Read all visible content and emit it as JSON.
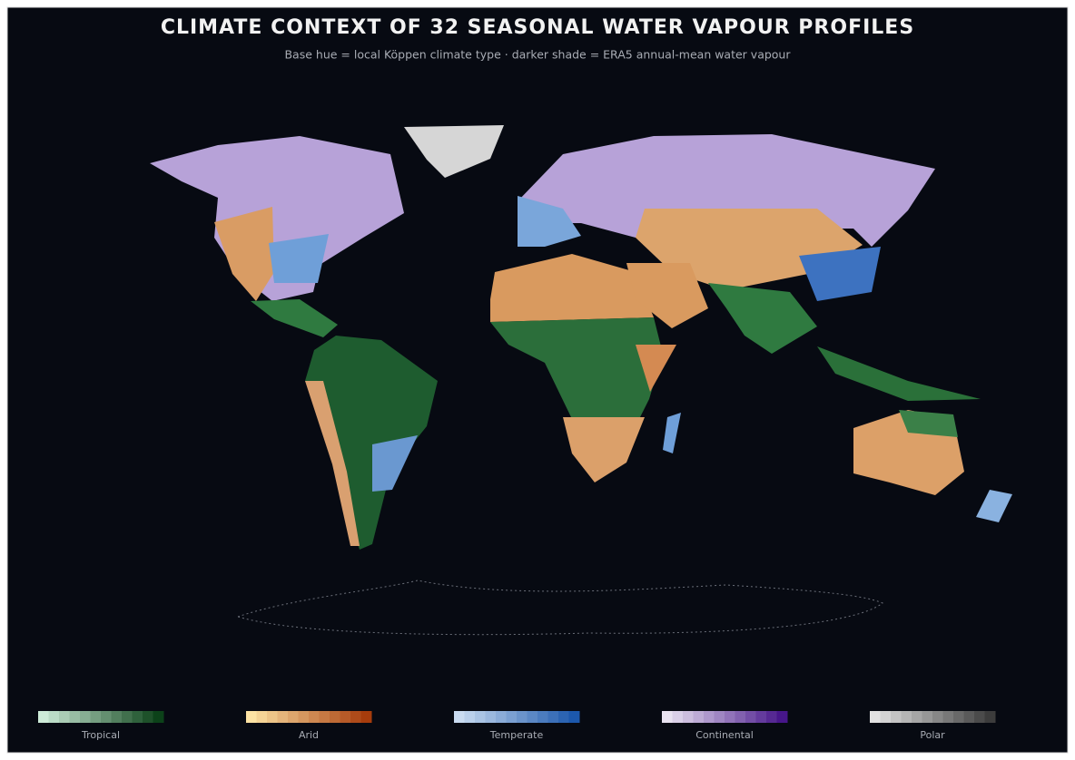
{
  "header": {
    "title": "CLIMATE CONTEXT OF 32 SEASONAL WATER VAPOUR PROFILES",
    "subtitle": "Base hue = local Köppen climate type  ·  darker shade = ERA5 annual-mean water vapour"
  },
  "legend": [
    {
      "label": "Tropical",
      "colors": [
        "#cdebd8",
        "#0c4219"
      ]
    },
    {
      "label": "Arid",
      "colors": [
        "#fde3a4",
        "#a63c0c"
      ]
    },
    {
      "label": "Temperate",
      "colors": [
        "#cadcf1",
        "#1c58ac"
      ]
    },
    {
      "label": "Continental",
      "colors": [
        "#e9e3f1",
        "#47168a"
      ]
    },
    {
      "label": "Polar",
      "colors": [
        "#e2e2e2",
        "#3c3c3c"
      ]
    }
  ]
}
